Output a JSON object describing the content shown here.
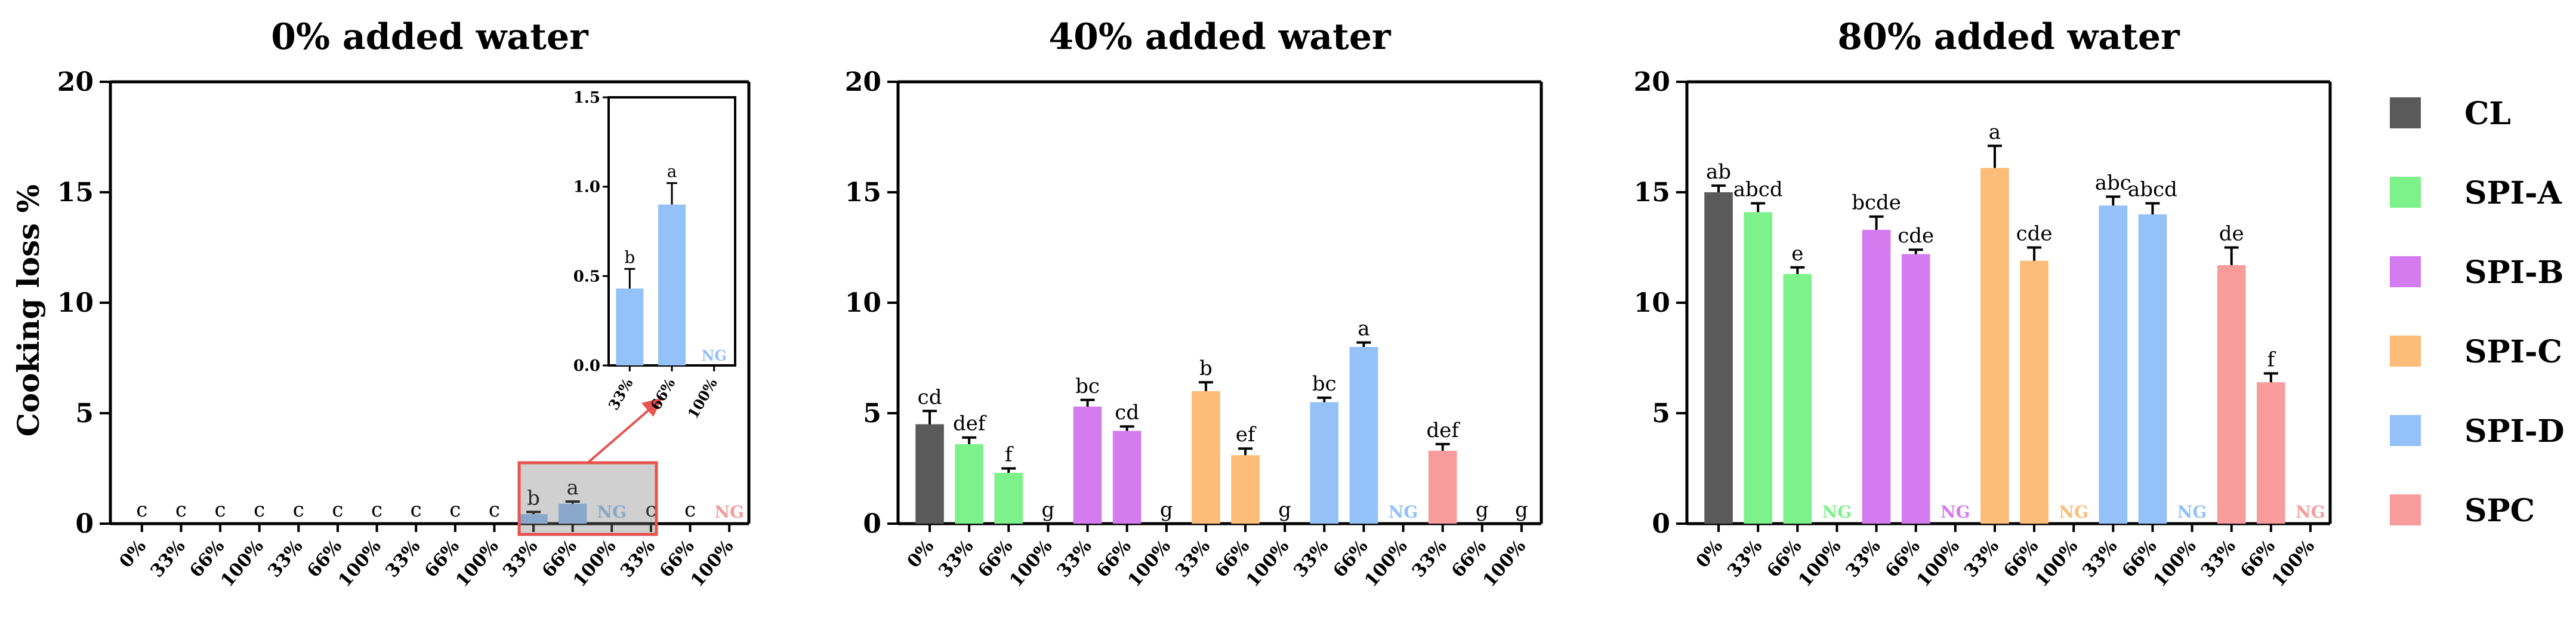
{
  "figure": {
    "y_label": "Cooking loss %",
    "legend": [
      {
        "name": "CL",
        "color": "#5a5a5a"
      },
      {
        "name": "SPI-A",
        "color": "#7df28a"
      },
      {
        "name": "SPI-B",
        "color": "#d57bf0"
      },
      {
        "name": "SPI-C",
        "color": "#fdbc77"
      },
      {
        "name": "SPI-D",
        "color": "#93c1f8"
      },
      {
        "name": "SPC",
        "color": "#f79b9b"
      }
    ]
  },
  "chart_data": [
    {
      "type": "bar",
      "title": "0% added water",
      "ylabel": "Cooking loss %",
      "ylim": [
        0,
        20
      ],
      "yticks": [
        0,
        5,
        10,
        15,
        20
      ],
      "categories": [
        "0%",
        "33%",
        "66%",
        "100%",
        "33%",
        "66%",
        "100%",
        "33%",
        "66%",
        "100%",
        "33%",
        "66%",
        "100%",
        "33%",
        "66%",
        "100%"
      ],
      "groups": [
        "CL",
        "SPI-A",
        "SPI-A",
        "SPI-A",
        "SPI-B",
        "SPI-B",
        "SPI-B",
        "SPI-C",
        "SPI-C",
        "SPI-C",
        "SPI-D",
        "SPI-D",
        "SPI-D",
        "SPC",
        "SPC",
        "SPC"
      ],
      "values": [
        0,
        0,
        0,
        0,
        0,
        0,
        0,
        0,
        0,
        0,
        0.43,
        0.9,
        null,
        0,
        0,
        null
      ],
      "errors": [
        0,
        0,
        0,
        0,
        0,
        0,
        0,
        0,
        0,
        0,
        0.1,
        0.1,
        null,
        0,
        0,
        null
      ],
      "labels": [
        "c",
        "c",
        "c",
        "c",
        "c",
        "c",
        "c",
        "c",
        "c",
        "c",
        "b",
        "a",
        "NG",
        "c",
        "c",
        "NG"
      ],
      "inset": {
        "ylim": [
          0,
          1.5
        ],
        "yticks": [
          "0.0",
          "0.5",
          "1.0",
          "1.5"
        ],
        "categories": [
          "33%",
          "66%",
          "100%"
        ],
        "values": [
          0.43,
          0.9,
          null
        ],
        "errors": [
          0.11,
          0.12,
          null
        ],
        "labels": [
          "b",
          "a",
          "NG"
        ]
      }
    },
    {
      "type": "bar",
      "title": "40% added water",
      "ylim": [
        0,
        20
      ],
      "yticks": [
        0,
        5,
        10,
        15,
        20
      ],
      "categories": [
        "0%",
        "33%",
        "66%",
        "100%",
        "33%",
        "66%",
        "100%",
        "33%",
        "66%",
        "100%",
        "33%",
        "66%",
        "100%",
        "33%",
        "66%",
        "100%"
      ],
      "groups": [
        "CL",
        "SPI-A",
        "SPI-A",
        "SPI-A",
        "SPI-B",
        "SPI-B",
        "SPI-B",
        "SPI-C",
        "SPI-C",
        "SPI-C",
        "SPI-D",
        "SPI-D",
        "SPI-D",
        "SPC",
        "SPC",
        "SPC"
      ],
      "values": [
        4.5,
        3.6,
        2.3,
        0,
        5.3,
        4.2,
        0,
        6.0,
        3.1,
        0,
        5.5,
        8.0,
        null,
        3.3,
        0,
        0
      ],
      "errors": [
        0.6,
        0.3,
        0.2,
        0,
        0.3,
        0.2,
        0,
        0.4,
        0.3,
        0,
        0.2,
        0.2,
        null,
        0.3,
        0,
        0
      ],
      "labels": [
        "cd",
        "def",
        "f",
        "g",
        "bc",
        "cd",
        "g",
        "b",
        "ef",
        "g",
        "bc",
        "a",
        "NG",
        "def",
        "g",
        "g"
      ]
    },
    {
      "type": "bar",
      "title": "80% added water",
      "ylim": [
        0,
        20
      ],
      "yticks": [
        0,
        5,
        10,
        15,
        20
      ],
      "categories": [
        "0%",
        "33%",
        "66%",
        "100%",
        "33%",
        "66%",
        "100%",
        "33%",
        "66%",
        "100%",
        "33%",
        "66%",
        "100%",
        "33%",
        "66%",
        "100%"
      ],
      "groups": [
        "CL",
        "SPI-A",
        "SPI-A",
        "SPI-A",
        "SPI-B",
        "SPI-B",
        "SPI-B",
        "SPI-C",
        "SPI-C",
        "SPI-C",
        "SPI-D",
        "SPI-D",
        "SPI-D",
        "SPC",
        "SPC",
        "SPC"
      ],
      "values": [
        15.0,
        14.1,
        11.3,
        null,
        13.3,
        12.2,
        null,
        16.1,
        11.9,
        null,
        14.4,
        14.0,
        null,
        11.7,
        6.4,
        null
      ],
      "errors": [
        0.3,
        0.4,
        0.3,
        null,
        0.6,
        0.2,
        null,
        1.0,
        0.6,
        null,
        0.4,
        0.5,
        null,
        0.8,
        0.4,
        null
      ],
      "labels": [
        "ab",
        "abcd",
        "e",
        "NG",
        "bcde",
        "cde",
        "NG",
        "a",
        "cde",
        "NG",
        "abc",
        "abcd",
        "NG",
        "de",
        "f",
        "NG"
      ]
    }
  ]
}
